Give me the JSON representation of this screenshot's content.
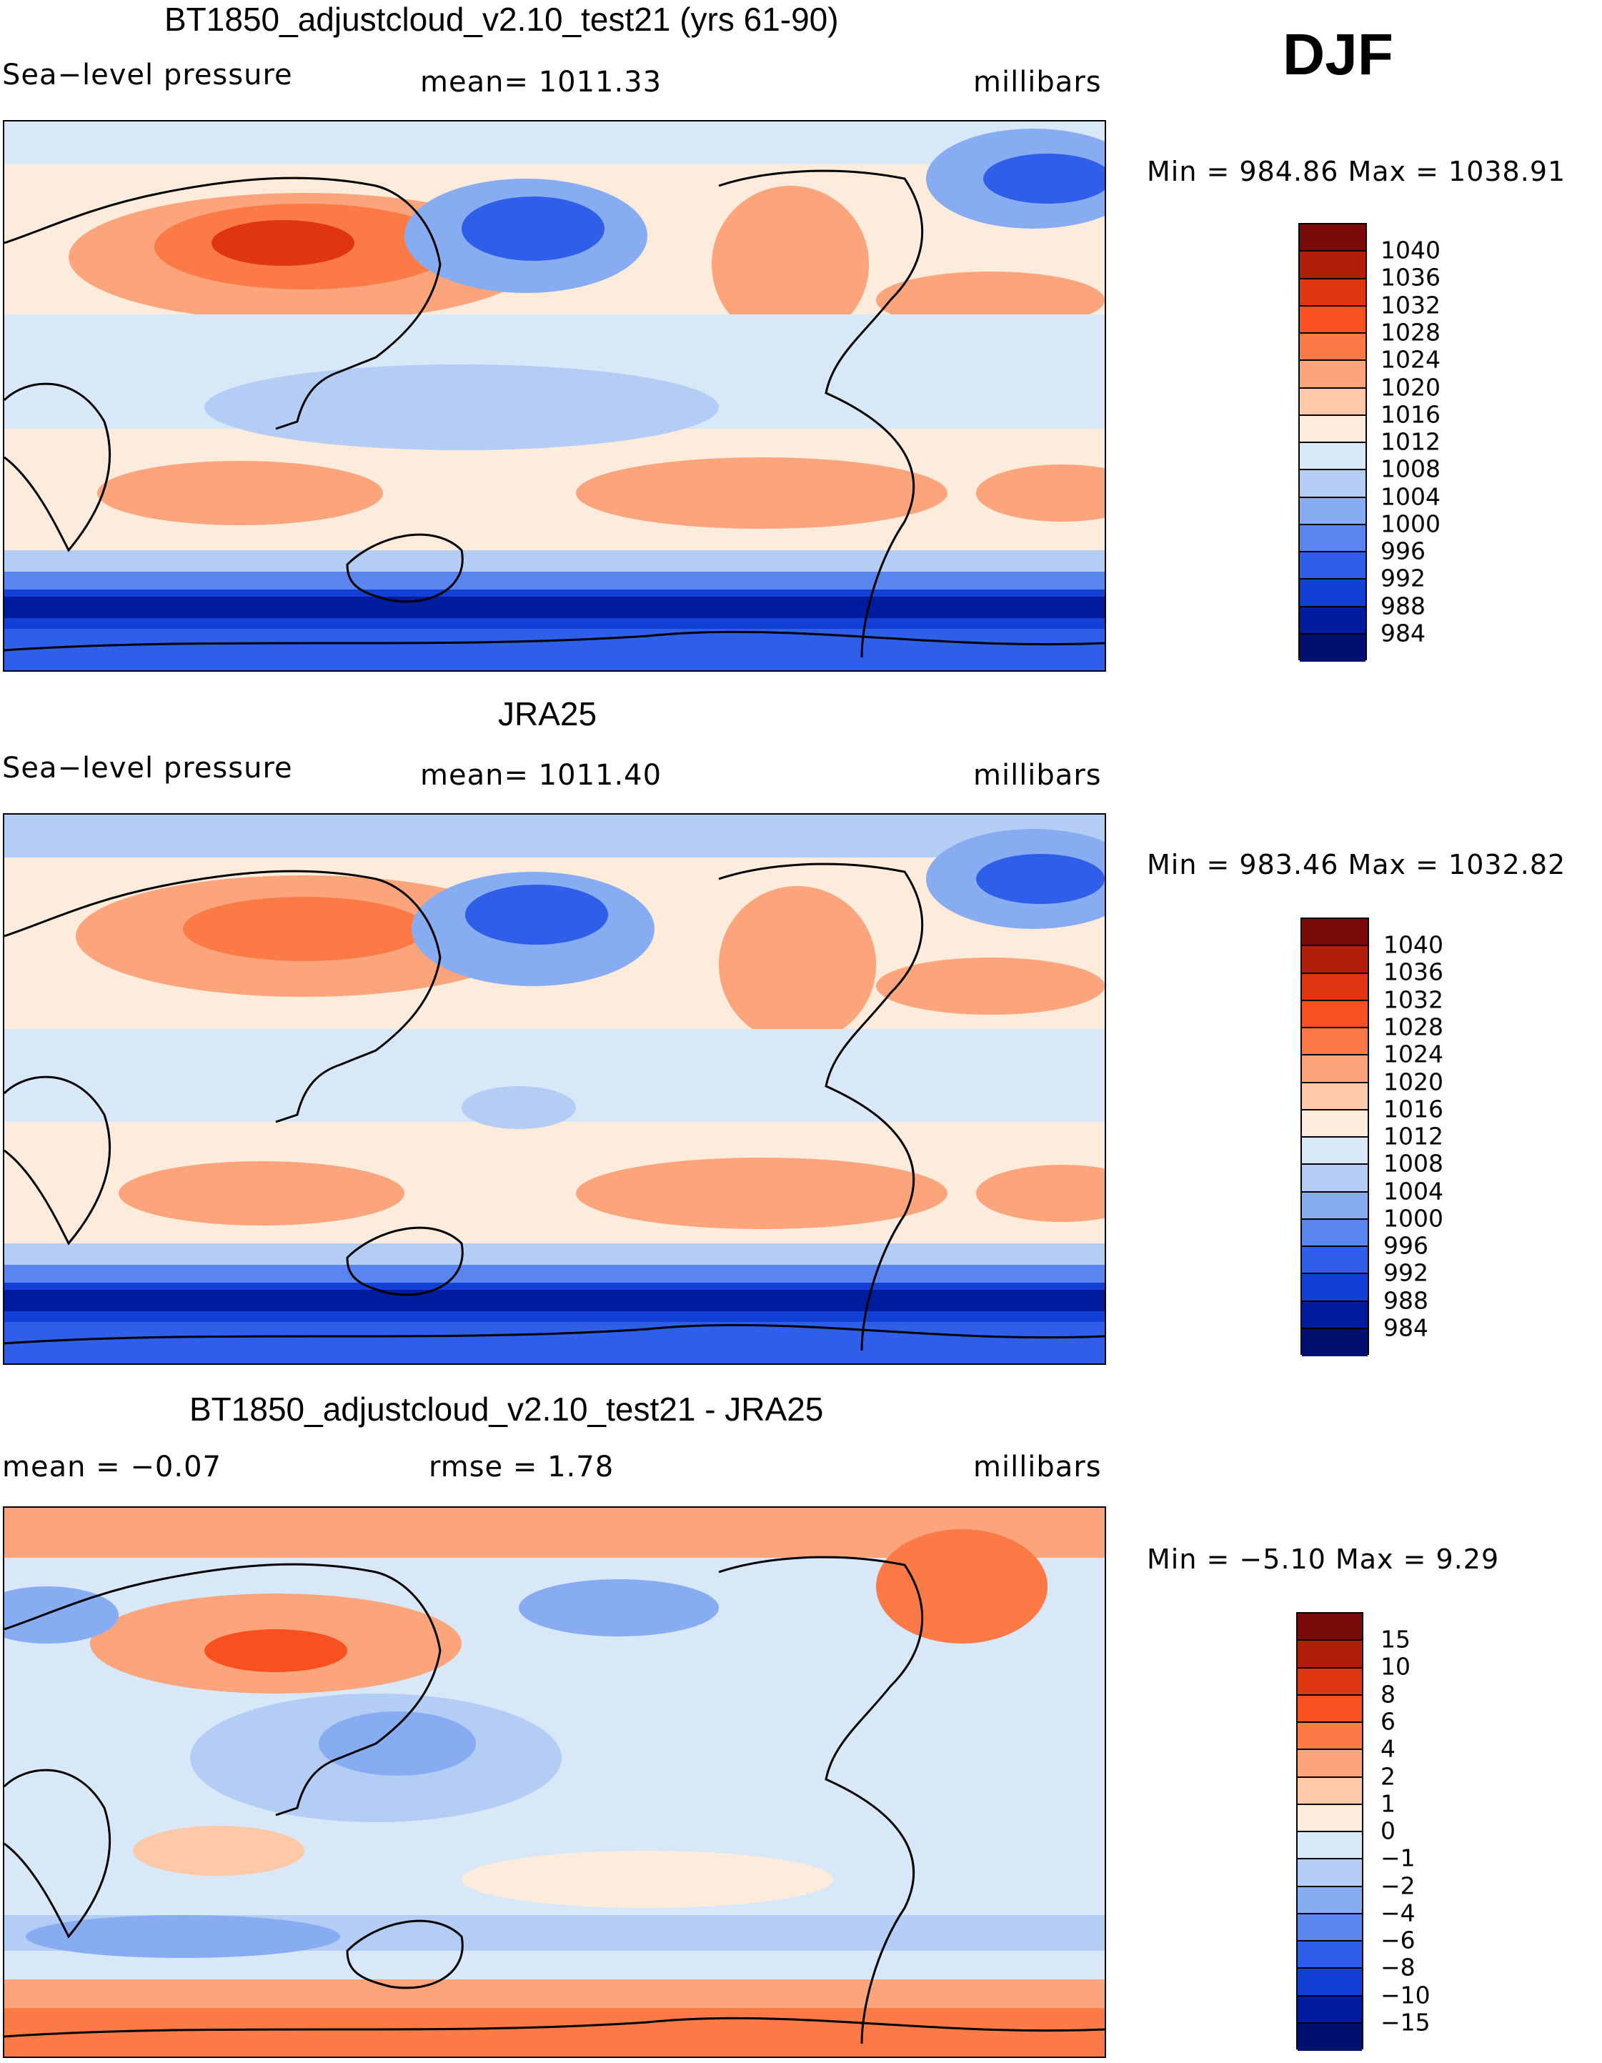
{
  "season": "DJF",
  "panels": [
    {
      "id": "model",
      "title": "BT1850_adjustcloud_v2.10_test21 (yrs 61-90)",
      "left_label": "Sea−level pressure",
      "center_label": "mean= 1011.33",
      "right_label": "millibars",
      "min_max": "Min  =  984.86  Max  =  1038.91",
      "palette": "abs",
      "legend_labels": [
        "1040",
        "1036",
        "1032",
        "1028",
        "1024",
        "1020",
        "1016",
        "1012",
        "1008",
        "1004",
        "1000",
        "996",
        "992",
        "988",
        "984"
      ]
    },
    {
      "id": "obs",
      "title": "JRA25",
      "left_label": "Sea−level pressure",
      "center_label": "mean= 1011.40",
      "right_label": "millibars",
      "min_max": "Min  =  983.46  Max  =  1032.82",
      "palette": "abs",
      "legend_labels": [
        "1040",
        "1036",
        "1032",
        "1028",
        "1024",
        "1020",
        "1016",
        "1012",
        "1008",
        "1004",
        "1000",
        "996",
        "992",
        "988",
        "984"
      ]
    },
    {
      "id": "diff",
      "title": "BT1850_adjustcloud_v2.10_test21 - JRA25",
      "left_label": "mean  =    −0.07",
      "center_label": "rmse  =     1.78",
      "right_label": "millibars",
      "min_max": "Min  =    −5.10  Max  =     9.29",
      "palette": "diff",
      "legend_labels": [
        "15",
        "10",
        "8",
        "6",
        "4",
        "2",
        "1",
        "0",
        "−1",
        "−2",
        "−4",
        "−6",
        "−8",
        "−10",
        "−15"
      ]
    }
  ],
  "colors": {
    "abs": [
      "#7a0a0a",
      "#b31e0a",
      "#e0360f",
      "#f8511f",
      "#fb7a45",
      "#fca47c",
      "#fdc9a8",
      "#fdebdc",
      "#d8e8f8",
      "#b3cdf5",
      "#87acf2",
      "#5a84ef",
      "#2f5ee8",
      "#123fd4",
      "#001c9e",
      "#000f70"
    ],
    "diff": [
      "#7a0a0a",
      "#b31e0a",
      "#e0360f",
      "#f8511f",
      "#fb7a45",
      "#fca47c",
      "#fdc9a8",
      "#fdebdc",
      "#d8e8f8",
      "#b3cdf5",
      "#87acf2",
      "#5a84ef",
      "#2f5ee8",
      "#123fd4",
      "#001c9e",
      "#000f70"
    ],
    "coast": "#000000"
  }
}
